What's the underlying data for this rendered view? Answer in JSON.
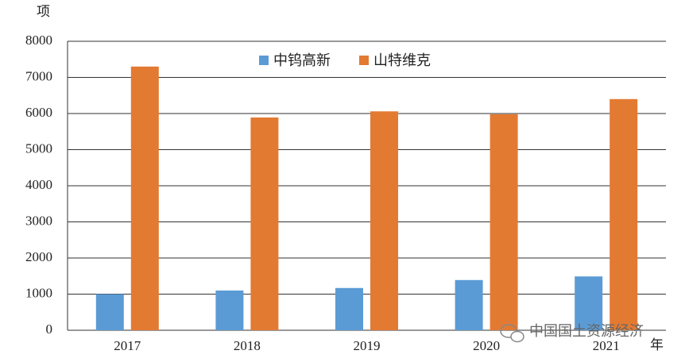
{
  "chart_data": {
    "type": "bar",
    "y_label": "项",
    "x_label": "年",
    "categories": [
      "2017",
      "2018",
      "2019",
      "2020",
      "2021"
    ],
    "series": [
      {
        "name": "中钨高新",
        "color": "#5b9bd5",
        "values": [
          1000,
          1100,
          1170,
          1390,
          1490
        ]
      },
      {
        "name": "山特维克",
        "color": "#e37a32",
        "values": [
          7300,
          5890,
          6060,
          5980,
          6400
        ]
      }
    ],
    "ylim": [
      0,
      8000
    ],
    "yticks": [
      0,
      1000,
      2000,
      3000,
      4000,
      5000,
      6000,
      7000,
      8000
    ],
    "grid": true,
    "legend": "top",
    "watermark": "中国国土资源经济"
  }
}
